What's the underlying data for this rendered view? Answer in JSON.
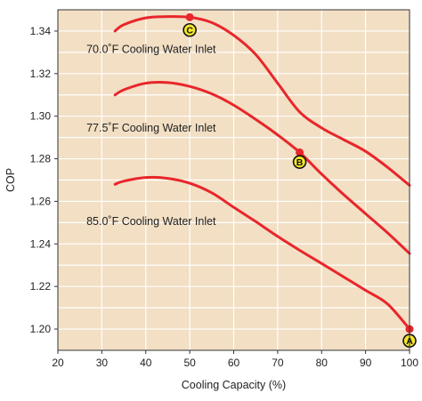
{
  "chart_data": {
    "type": "line",
    "title": "",
    "xlabel": "Cooling Capacity (%)",
    "ylabel": "COP",
    "xlim": [
      20,
      100
    ],
    "ylim": [
      1.19,
      1.35
    ],
    "xticks": [
      20,
      30,
      40,
      50,
      60,
      70,
      80,
      90,
      100
    ],
    "yticks": [
      1.2,
      1.22,
      1.24,
      1.26,
      1.28,
      1.3,
      1.32,
      1.34
    ],
    "ytick_labels": [
      "1.20",
      "1.22",
      "1.24",
      "1.26",
      "1.28",
      "1.30",
      "1.32",
      "1.34"
    ],
    "grid": true,
    "colors": {
      "plot_bg": "#f2dfc4",
      "grid": "#ffffff",
      "line": "#e8262b",
      "marker_fill": "#f4e62a",
      "axis": "#333333"
    },
    "series": [
      {
        "name": "70.0˚F Cooling Water Inlet",
        "x": [
          33,
          35,
          40,
          45,
          50,
          55,
          60,
          65,
          70,
          75,
          80,
          85,
          90,
          95,
          100
        ],
        "y": [
          1.34,
          1.343,
          1.3462,
          1.3468,
          1.3465,
          1.344,
          1.338,
          1.329,
          1.3155,
          1.302,
          1.2945,
          1.289,
          1.2835,
          1.276,
          1.2675
        ]
      },
      {
        "name": "77.5˚F Cooling Water Inlet",
        "x": [
          33,
          35,
          40,
          45,
          50,
          55,
          60,
          65,
          70,
          75,
          80,
          85,
          90,
          95,
          100
        ],
        "y": [
          1.31,
          1.3124,
          1.3155,
          1.3158,
          1.314,
          1.3105,
          1.3052,
          1.2985,
          1.2912,
          1.283,
          1.2728,
          1.2632,
          1.2542,
          1.2452,
          1.2355
        ]
      },
      {
        "name": "85.0˚F Cooling Water Inlet",
        "x": [
          33,
          35,
          40,
          45,
          50,
          55,
          60,
          65,
          70,
          75,
          80,
          85,
          90,
          95,
          100
        ],
        "y": [
          1.268,
          1.2695,
          1.2712,
          1.2708,
          1.2685,
          1.264,
          1.2572,
          1.2505,
          1.2435,
          1.237,
          1.2308,
          1.2245,
          1.2182,
          1.2118,
          1.2
        ]
      }
    ],
    "series_labels": [
      {
        "text": "70.0˚F Cooling Water Inlet",
        "x": 26.5,
        "y": 1.3315
      },
      {
        "text": "77.5˚F Cooling Water Inlet",
        "x": 26.5,
        "y": 1.2945
      },
      {
        "text": "85.0˚F Cooling Water Inlet",
        "x": 26.5,
        "y": 1.2505
      }
    ],
    "points": [
      {
        "label": "C",
        "x": 50,
        "y": 1.3465,
        "badge_y": 1.3405
      },
      {
        "label": "B",
        "x": 75,
        "y": 1.283,
        "badge_y": 1.2785
      },
      {
        "label": "A",
        "x": 100,
        "y": 1.2,
        "badge_y": 1.1945
      }
    ]
  }
}
